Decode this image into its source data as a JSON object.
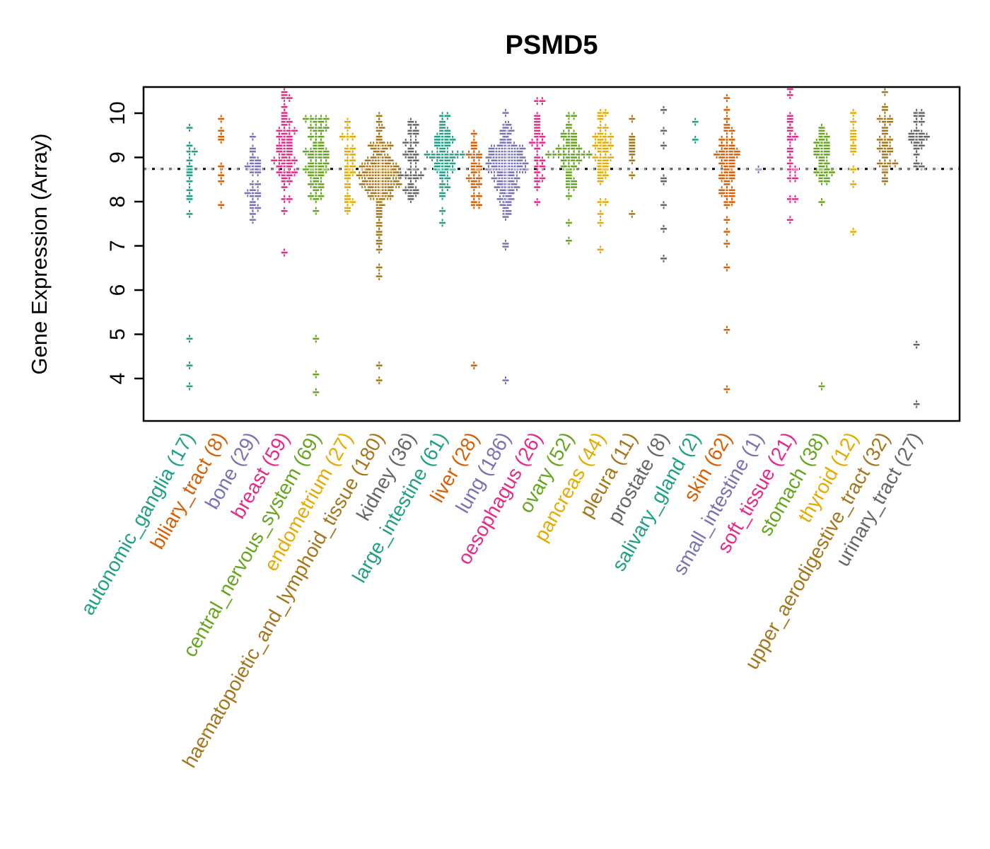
{
  "chart_data": {
    "type": "scatter",
    "subtype": "beeswarm",
    "title": "PSMD5",
    "xlabel": "",
    "ylabel": "Gene Expression (Array)",
    "yticks": [
      4,
      5,
      6,
      7,
      8,
      9,
      10
    ],
    "ylim": [
      3.05,
      10.6
    ],
    "grid": false,
    "legend": "none",
    "reference_line": 8.74,
    "reference_line_style": "dotted-black-under-points-with-light-gray-over",
    "palette": [
      "#20A086",
      "#D95F02",
      "#7873B4",
      "#E7298A",
      "#66A61E",
      "#E6AB02",
      "#A6761D",
      "#666666"
    ],
    "groups": [
      {
        "label": "autonomic_ganglia",
        "n": 17,
        "color": "#20A086",
        "cluster": {
          "center": 8.55,
          "sd": 0.6,
          "lo": 7.3,
          "hi": 9.75
        },
        "outliers": [
          4.9,
          4.3,
          3.8
        ]
      },
      {
        "label": "biliary_tract",
        "n": 8,
        "color": "#D95F02",
        "points": [
          9.9,
          9.62,
          9.5,
          9.38,
          8.82,
          8.6,
          8.45,
          7.92
        ]
      },
      {
        "label": "bone",
        "n": 29,
        "color": "#7873B4",
        "cluster": {
          "center": 8.65,
          "sd": 0.55,
          "lo": 7.55,
          "hi": 9.95
        }
      },
      {
        "label": "breast",
        "n": 59,
        "color": "#E7298A",
        "cluster": {
          "center": 9.1,
          "sd": 0.6,
          "lo": 7.7,
          "hi": 10.45
        },
        "tail": [
          10.5
        ],
        "outliers": [
          6.87
        ]
      },
      {
        "label": "central_nervous_system",
        "n": 69,
        "color": "#66A61E",
        "cluster": {
          "center": 9.0,
          "sd": 0.52,
          "lo": 7.5,
          "hi": 10.2
        },
        "outliers": [
          4.9,
          4.08,
          3.67
        ]
      },
      {
        "label": "endometrium",
        "n": 27,
        "color": "#E6AB02",
        "cluster": {
          "center": 8.85,
          "sd": 0.6,
          "lo": 7.5,
          "hi": 9.9
        }
      },
      {
        "label": "haematopoietic_and_lymphoid_tissue",
        "n": 180,
        "color": "#A6761D",
        "cluster": {
          "center": 8.65,
          "sd": 0.4,
          "lo": 7.95,
          "hi": 9.65
        },
        "tail": [
          9.95,
          9.8,
          7.9,
          7.85,
          7.8,
          7.7,
          7.65,
          7.55,
          7.45,
          7.35,
          7.25,
          7.1,
          7.05,
          6.9,
          6.5,
          6.3
        ],
        "outliers": [
          4.32,
          3.97
        ]
      },
      {
        "label": "kidney",
        "n": 36,
        "color": "#666666",
        "cluster": {
          "center": 8.85,
          "sd": 0.5,
          "lo": 7.45,
          "hi": 9.8
        }
      },
      {
        "label": "large_intestine",
        "n": 61,
        "color": "#20A086",
        "cluster": {
          "center": 9.15,
          "sd": 0.45,
          "lo": 7.95,
          "hi": 10.0
        },
        "tail": [
          7.8,
          7.5
        ]
      },
      {
        "label": "liver",
        "n": 28,
        "color": "#D95F02",
        "cluster": {
          "center": 8.75,
          "sd": 0.55,
          "lo": 7.2,
          "hi": 10.05
        },
        "outliers": [
          4.32
        ]
      },
      {
        "label": "lung",
        "n": 186,
        "color": "#7873B4",
        "cluster": {
          "center": 8.8,
          "sd": 0.48,
          "lo": 7.3,
          "hi": 10.35
        },
        "tail": [
          7.05,
          6.95
        ],
        "outliers": [
          3.93
        ]
      },
      {
        "label": "oesophagus",
        "n": 26,
        "color": "#E7298A",
        "cluster": {
          "center": 9.3,
          "sd": 0.5,
          "lo": 7.95,
          "hi": 10.35
        }
      },
      {
        "label": "ovary",
        "n": 52,
        "color": "#66A61E",
        "cluster": {
          "center": 9.15,
          "sd": 0.5,
          "lo": 7.85,
          "hi": 10.0
        },
        "tail": [
          7.5,
          7.1
        ]
      },
      {
        "label": "pancreas",
        "n": 44,
        "color": "#E6AB02",
        "cluster": {
          "center": 9.1,
          "sd": 0.5,
          "lo": 7.95,
          "hi": 10.1
        },
        "tail": [
          7.7,
          7.5,
          6.9
        ]
      },
      {
        "label": "pleura",
        "n": 11,
        "color": "#A6761D",
        "points": [
          9.9,
          9.5,
          9.42,
          9.35,
          9.28,
          9.2,
          9.15,
          9.05,
          8.95,
          8.6,
          7.75
        ]
      },
      {
        "label": "prostate",
        "n": 8,
        "color": "#666666",
        "points": [
          10.1,
          9.6,
          9.3,
          8.55,
          8.45,
          7.9,
          7.4,
          6.7
        ]
      },
      {
        "label": "salivary_gland",
        "n": 2,
        "color": "#20A086",
        "points": [
          9.8,
          9.4
        ]
      },
      {
        "label": "skin",
        "n": 62,
        "color": "#D95F02",
        "cluster": {
          "center": 8.9,
          "sd": 0.5,
          "lo": 7.9,
          "hi": 9.75
        },
        "tail": [
          10.35,
          10.1,
          9.9,
          7.6,
          7.3,
          7.05,
          6.5
        ],
        "outliers": [
          5.1,
          3.75
        ]
      },
      {
        "label": "small_intestine",
        "n": 1,
        "color": "#7873B4",
        "points": [
          8.74
        ]
      },
      {
        "label": "soft_tissue",
        "n": 21,
        "color": "#E7298A",
        "cluster": {
          "center": 9.0,
          "sd": 0.75,
          "lo": 7.4,
          "hi": 10.45
        },
        "tail": [
          10.55
        ]
      },
      {
        "label": "stomach",
        "n": 38,
        "color": "#66A61E",
        "cluster": {
          "center": 9.05,
          "sd": 0.45,
          "lo": 7.9,
          "hi": 9.95
        },
        "outliers": [
          3.85
        ]
      },
      {
        "label": "thyroid",
        "n": 12,
        "color": "#E6AB02",
        "points": [
          10.0,
          9.8,
          9.62,
          9.55,
          9.45,
          9.38,
          9.3,
          9.22,
          9.1,
          8.75,
          8.4,
          7.3
        ]
      },
      {
        "label": "upper_aerodigestive_tract",
        "n": 32,
        "color": "#A6761D",
        "cluster": {
          "center": 9.25,
          "sd": 0.52,
          "lo": 7.95,
          "hi": 10.2
        },
        "tail": [
          10.45
        ]
      },
      {
        "label": "urinary_tract",
        "n": 27,
        "color": "#666666",
        "cluster": {
          "center": 9.3,
          "sd": 0.45,
          "lo": 7.65,
          "hi": 10.05
        },
        "tail": [
          10.0
        ],
        "outliers": [
          4.78,
          3.4
        ]
      }
    ]
  }
}
